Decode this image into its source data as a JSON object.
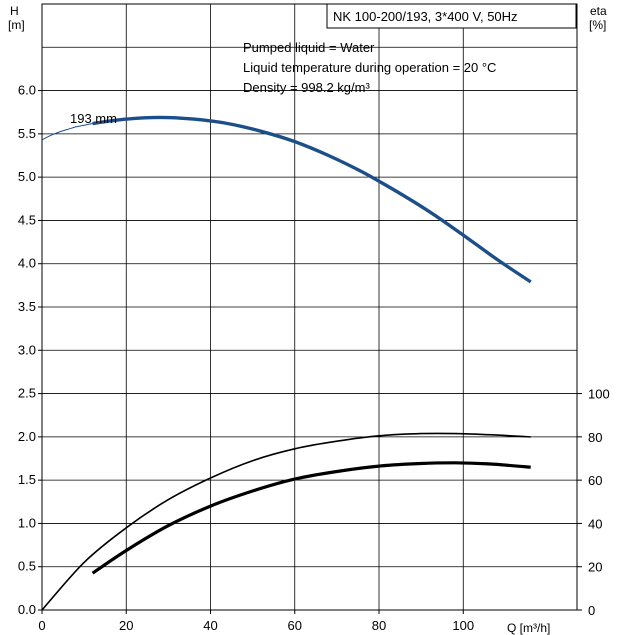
{
  "chart_data": {
    "type": "line",
    "title": "NK 100-200/193, 3*400 V, 50Hz",
    "annotations": [
      "Pumped liquid = Water",
      "Liquid temperature during operation = 20 °C",
      "Density = 998.2 kg/m³"
    ],
    "curve_label": "193 mm",
    "xlabel": "Q [m³/h]",
    "ylabel_left": [
      "H",
      "[m]"
    ],
    "ylabel_right": [
      "eta",
      "[%]"
    ],
    "x_ticks": [
      "0",
      "20",
      "40",
      "60",
      "80",
      "100"
    ],
    "y_ticks_left": [
      "0.0",
      "0.5",
      "1.0",
      "1.5",
      "2.0",
      "2.5",
      "3.0",
      "3.5",
      "4.0",
      "4.5",
      "5.0",
      "5.5",
      "6.0"
    ],
    "y_ticks_right": [
      "0",
      "20",
      "40",
      "60",
      "80",
      "100"
    ],
    "xlim": [
      0,
      127
    ],
    "ylim_left": [
      0,
      7.0
    ],
    "ylim_right": [
      0,
      100
    ],
    "grid": true,
    "series": [
      {
        "axis": "left",
        "color": "#1c4f8a",
        "style": "thin",
        "x": [
          0,
          2,
          4,
          6,
          8,
          10,
          12
        ],
        "y": [
          5.43,
          5.48,
          5.52,
          5.55,
          5.58,
          5.6,
          5.62
        ]
      },
      {
        "axis": "left",
        "color": "#1c4f8a",
        "style": "thick",
        "x": [
          12,
          20,
          28,
          36,
          44,
          52,
          60,
          68,
          76,
          84,
          92,
          100,
          108,
          116
        ],
        "y": [
          5.62,
          5.67,
          5.69,
          5.67,
          5.62,
          5.53,
          5.41,
          5.25,
          5.06,
          4.84,
          4.6,
          4.33,
          4.05,
          3.79
        ]
      },
      {
        "axis": "right",
        "color": "#000000",
        "style": "medium",
        "x": [
          0,
          10,
          20,
          30,
          40,
          50,
          60,
          70,
          80,
          90,
          98,
          106,
          116
        ],
        "y": [
          0,
          22,
          38,
          51,
          61,
          69,
          74.5,
          78,
          80.5,
          81.5,
          81.5,
          81,
          80
        ]
      },
      {
        "axis": "right",
        "color": "#000000",
        "style": "bold",
        "x": [
          12,
          20,
          30,
          40,
          50,
          60,
          70,
          80,
          90,
          98,
          106,
          116
        ],
        "y": [
          17,
          27.5,
          39,
          48,
          55,
          60.5,
          64,
          66.5,
          67.7,
          68,
          67.5,
          66
        ]
      }
    ]
  }
}
